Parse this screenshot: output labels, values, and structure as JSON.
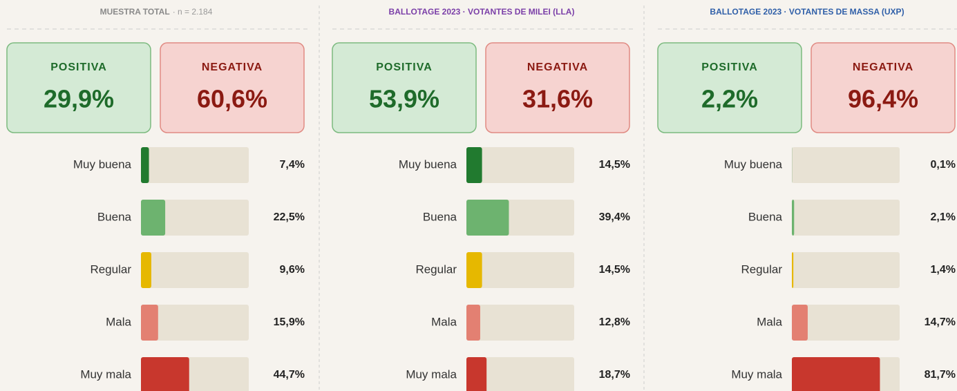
{
  "chart_data": [
    {
      "type": "bar",
      "title": "MUESTRA TOTAL",
      "subtitle": "· n = 2.184",
      "title_color": "#8a8a8a",
      "summary": [
        {
          "label": "POSITIVA",
          "value": 29.9,
          "value_label": "29,9%"
        },
        {
          "label": "NEGATIVA",
          "value": 60.6,
          "value_label": "60,6%"
        }
      ],
      "categories": [
        "Muy buena",
        "Buena",
        "Regular",
        "Mala",
        "Muy mala"
      ],
      "values": [
        7.4,
        22.5,
        9.6,
        15.9,
        44.7
      ],
      "value_labels": [
        "7,4%",
        "22,5%",
        "9,6%",
        "15,9%",
        "44,7%"
      ],
      "colors": [
        "#217a2f",
        "#6db36f",
        "#e6b800",
        "#e38072",
        "#c8372d"
      ],
      "xlim": [
        0,
        100
      ]
    },
    {
      "type": "bar",
      "title": "BALLOTAGE 2023 · VOTANTES DE MILEI (LLA)",
      "title_color": "#7b3fa8",
      "summary": [
        {
          "label": "POSITIVA",
          "value": 53.9,
          "value_label": "53,9%"
        },
        {
          "label": "NEGATIVA",
          "value": 31.6,
          "value_label": "31,6%"
        }
      ],
      "categories": [
        "Muy buena",
        "Buena",
        "Regular",
        "Mala",
        "Muy mala"
      ],
      "values": [
        14.5,
        39.4,
        14.5,
        12.8,
        18.7
      ],
      "value_labels": [
        "14,5%",
        "39,4%",
        "14,5%",
        "12,8%",
        "18,7%"
      ],
      "colors": [
        "#217a2f",
        "#6db36f",
        "#e6b800",
        "#e38072",
        "#c8372d"
      ],
      "xlim": [
        0,
        100
      ]
    },
    {
      "type": "bar",
      "title": "BALLOTAGE 2023 · VOTANTES DE MASSA (UXP)",
      "title_color": "#2f5fa8",
      "summary": [
        {
          "label": "POSITIVA",
          "value": 2.2,
          "value_label": "2,2%"
        },
        {
          "label": "NEGATIVA",
          "value": 96.4,
          "value_label": "96,4%"
        }
      ],
      "categories": [
        "Muy buena",
        "Buena",
        "Regular",
        "Mala",
        "Muy mala"
      ],
      "values": [
        0.1,
        2.1,
        1.4,
        14.7,
        81.7
      ],
      "value_labels": [
        "0,1%",
        "2,1%",
        "1,4%",
        "14,7%",
        "81,7%"
      ],
      "colors": [
        "#217a2f",
        "#6db36f",
        "#e6b800",
        "#e38072",
        "#c8372d"
      ],
      "xlim": [
        0,
        100
      ]
    }
  ]
}
